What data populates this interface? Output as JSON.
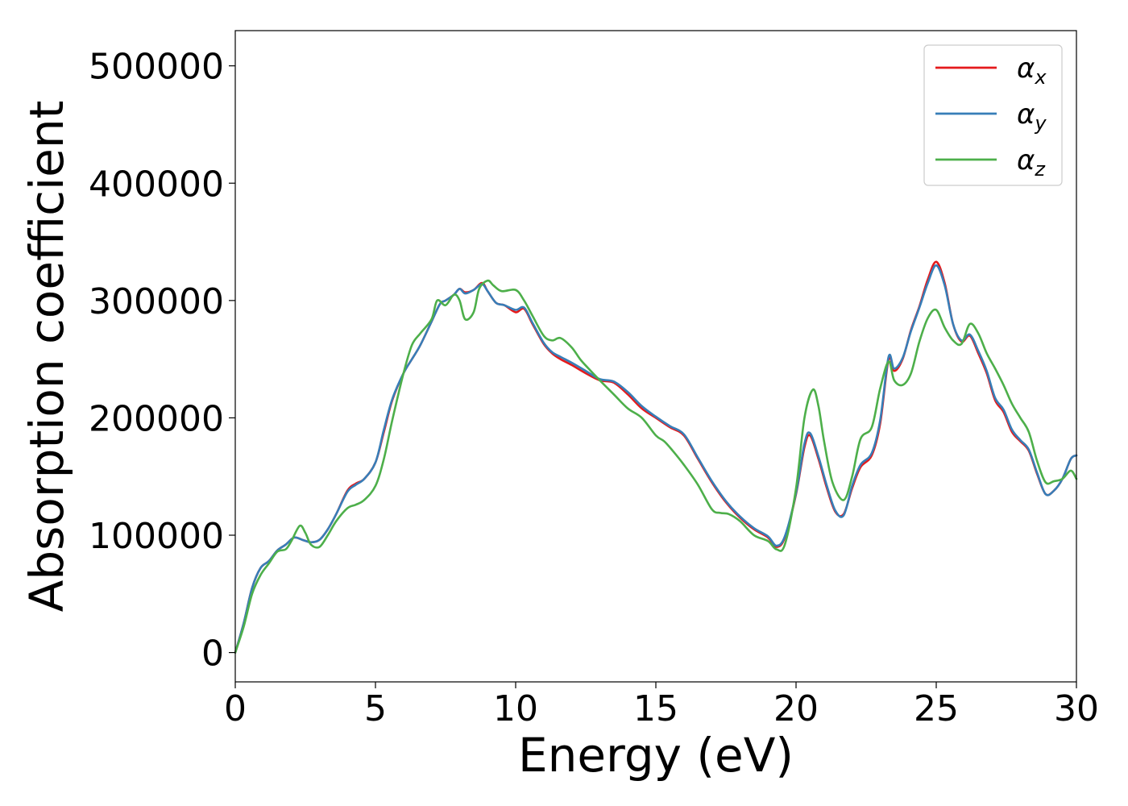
{
  "chart_data": {
    "type": "line",
    "title": "",
    "xlabel": "Energy (eV)",
    "ylabel": "Absorption coefficient",
    "xlim": [
      0,
      30
    ],
    "ylim": [
      -25000,
      530000
    ],
    "xticks": [
      0,
      5,
      10,
      15,
      20,
      25,
      30
    ],
    "yticks": [
      0,
      100000,
      200000,
      300000,
      400000,
      500000
    ],
    "grid": false,
    "legend_position": "top-right",
    "series": [
      {
        "name": "x",
        "legend_symbol": "α",
        "color": "#e41a1c",
        "x": [
          0,
          0.3,
          0.6,
          0.9,
          1.2,
          1.5,
          1.8,
          2.1,
          2.4,
          2.7,
          3.0,
          3.3,
          3.6,
          4.0,
          4.3,
          4.6,
          5.0,
          5.3,
          5.6,
          6.0,
          6.3,
          6.6,
          7.0,
          7.3,
          7.5,
          7.8,
          8.0,
          8.2,
          8.5,
          8.8,
          9.0,
          9.3,
          9.6,
          10.0,
          10.3,
          10.6,
          11.0,
          11.3,
          11.6,
          12.0,
          12.5,
          13.0,
          13.5,
          14.0,
          14.5,
          15.0,
          15.5,
          16.0,
          16.5,
          17.0,
          17.5,
          18.0,
          18.5,
          19.0,
          19.3,
          19.6,
          20.0,
          20.3,
          20.5,
          20.8,
          21.1,
          21.4,
          21.7,
          22.0,
          22.3,
          22.7,
          23.0,
          23.3,
          23.5,
          23.8,
          24.1,
          24.4,
          24.7,
          25.0,
          25.3,
          25.6,
          25.9,
          26.2,
          26.5,
          26.8,
          27.1,
          27.4,
          27.7,
          28.0,
          28.3,
          28.6,
          28.9,
          29.2,
          29.5,
          29.8,
          30.0
        ],
        "y": [
          0,
          25000,
          55000,
          72000,
          78000,
          87000,
          92000,
          98000,
          96000,
          94000,
          96000,
          105000,
          118000,
          138000,
          144000,
          148000,
          162000,
          188000,
          215000,
          238000,
          250000,
          262000,
          282000,
          297000,
          300000,
          305000,
          310000,
          307000,
          309000,
          315000,
          308000,
          298000,
          296000,
          290000,
          293000,
          280000,
          263000,
          255000,
          250000,
          245000,
          238000,
          232000,
          230000,
          220000,
          208000,
          200000,
          192000,
          185000,
          165000,
          145000,
          128000,
          115000,
          105000,
          98000,
          90000,
          98000,
          135000,
          175000,
          185000,
          165000,
          140000,
          120000,
          118000,
          140000,
          158000,
          168000,
          195000,
          250000,
          240000,
          250000,
          275000,
          295000,
          318000,
          333000,
          315000,
          280000,
          265000,
          270000,
          255000,
          238000,
          215000,
          205000,
          188000,
          180000,
          172000,
          152000,
          135000,
          138000,
          148000,
          165000,
          168000
        ]
      },
      {
        "name": "y",
        "legend_symbol": "α",
        "color": "#377eb8",
        "x": [
          0,
          0.3,
          0.6,
          0.9,
          1.2,
          1.5,
          1.8,
          2.1,
          2.4,
          2.7,
          3.0,
          3.3,
          3.6,
          4.0,
          4.3,
          4.6,
          5.0,
          5.3,
          5.6,
          6.0,
          6.3,
          6.6,
          7.0,
          7.3,
          7.5,
          7.8,
          8.0,
          8.2,
          8.5,
          8.8,
          9.0,
          9.3,
          9.6,
          10.0,
          10.3,
          10.6,
          11.0,
          11.3,
          11.6,
          12.0,
          12.5,
          13.0,
          13.5,
          14.0,
          14.5,
          15.0,
          15.5,
          16.0,
          16.5,
          17.0,
          17.5,
          18.0,
          18.5,
          19.0,
          19.3,
          19.6,
          20.0,
          20.3,
          20.5,
          20.8,
          21.1,
          21.4,
          21.7,
          22.0,
          22.3,
          22.7,
          23.0,
          23.3,
          23.5,
          23.8,
          24.1,
          24.4,
          24.7,
          25.0,
          25.3,
          25.6,
          25.9,
          26.2,
          26.5,
          26.8,
          27.1,
          27.4,
          27.7,
          28.0,
          28.3,
          28.6,
          28.9,
          29.2,
          29.5,
          29.8,
          30.0
        ],
        "y": [
          0,
          25000,
          55000,
          72000,
          78000,
          87000,
          92000,
          98000,
          96000,
          94000,
          96000,
          105000,
          118000,
          137000,
          143000,
          148000,
          162000,
          190000,
          216000,
          238000,
          250000,
          262000,
          282000,
          297000,
          300000,
          305000,
          310000,
          306000,
          309000,
          314000,
          308000,
          298000,
          296000,
          292000,
          294000,
          281000,
          264000,
          256000,
          252000,
          247000,
          240000,
          233000,
          231000,
          222000,
          210000,
          201000,
          193000,
          186000,
          166000,
          146000,
          129000,
          116000,
          106000,
          99000,
          91000,
          99000,
          136000,
          178000,
          187000,
          167000,
          142000,
          121000,
          117000,
          142000,
          160000,
          170000,
          198000,
          252000,
          242000,
          251000,
          274000,
          294000,
          315000,
          330000,
          313000,
          280000,
          266000,
          271000,
          257000,
          240000,
          217000,
          207000,
          190000,
          181000,
          173000,
          153000,
          135000,
          138000,
          148000,
          165000,
          168000
        ]
      },
      {
        "name": "z",
        "legend_symbol": "α",
        "color": "#4daf4a",
        "x": [
          0,
          0.3,
          0.6,
          0.9,
          1.2,
          1.5,
          1.8,
          2.0,
          2.3,
          2.5,
          2.7,
          3.0,
          3.3,
          3.6,
          4.0,
          4.3,
          4.6,
          5.0,
          5.3,
          5.6,
          6.0,
          6.3,
          6.6,
          7.0,
          7.2,
          7.5,
          7.8,
          8.0,
          8.2,
          8.5,
          8.7,
          9.0,
          9.2,
          9.5,
          10.0,
          10.3,
          10.6,
          11.0,
          11.3,
          11.6,
          12.0,
          12.3,
          12.6,
          13.0,
          13.5,
          14.0,
          14.5,
          15.0,
          15.3,
          15.6,
          16.0,
          16.5,
          17.0,
          17.3,
          17.6,
          18.0,
          18.5,
          19.0,
          19.3,
          19.6,
          20.0,
          20.3,
          20.6,
          20.8,
          21.0,
          21.3,
          21.7,
          22.0,
          22.3,
          22.7,
          23.0,
          23.3,
          23.5,
          23.8,
          24.1,
          24.4,
          24.7,
          25.0,
          25.3,
          25.6,
          25.9,
          26.2,
          26.5,
          26.8,
          27.1,
          27.4,
          27.7,
          28.0,
          28.3,
          28.6,
          28.9,
          29.2,
          29.5,
          29.8,
          30.0
        ],
        "y": [
          0,
          22000,
          50000,
          66000,
          76000,
          86000,
          88000,
          95000,
          108000,
          102000,
          92000,
          90000,
          100000,
          112000,
          123000,
          126000,
          130000,
          142000,
          165000,
          198000,
          238000,
          262000,
          272000,
          284000,
          300000,
          296000,
          305000,
          300000,
          284000,
          290000,
          310000,
          317000,
          313000,
          308000,
          309000,
          300000,
          287000,
          270000,
          266000,
          268000,
          260000,
          250000,
          242000,
          232000,
          220000,
          208000,
          200000,
          185000,
          180000,
          172000,
          160000,
          143000,
          122000,
          119000,
          118000,
          112000,
          100000,
          95000,
          88000,
          92000,
          140000,
          200000,
          224000,
          210000,
          180000,
          145000,
          130000,
          150000,
          182000,
          192000,
          225000,
          248000,
          232000,
          228000,
          238000,
          265000,
          285000,
          292000,
          277000,
          266000,
          263000,
          280000,
          272000,
          255000,
          242000,
          228000,
          212000,
          200000,
          188000,
          163000,
          145000,
          146000,
          148000,
          155000,
          148000
        ]
      }
    ]
  }
}
